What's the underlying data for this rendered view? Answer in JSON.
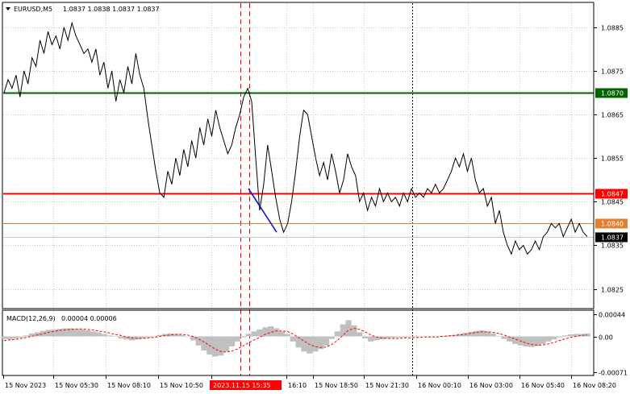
{
  "header": {
    "symbol_label": "EURUSD,M5",
    "ohlc": "1.0837 1.0838 1.0837 1.0837",
    "macd_label": "MACD(12,26,9)",
    "macd_values": "0.00004 0.00006"
  },
  "chart_data": {
    "type": "line",
    "title": "EURUSD,M5",
    "price_axis": {
      "ticks": [
        "1.0885",
        "1.0875",
        "1.0865",
        "1.0855",
        "1.0845",
        "1.0835",
        "1.0825"
      ],
      "ylim": [
        1.08205,
        1.08905
      ]
    },
    "time_axis": {
      "labels": [
        "15 Nov 2023",
        "15 Nov 05:30",
        "15 Nov 08:10",
        "15 Nov 10:50",
        "2023.11.15 15:35",
        "16:10",
        "15 Nov 18:50",
        "15 Nov 21:30",
        "16 Nov 00:10",
        "16 Nov 03:00",
        "16 Nov 05:40",
        "16 Nov 08:20"
      ],
      "highlighted_label": "2023.11.15 15:35"
    },
    "levels": [
      {
        "price": "1.0870",
        "color": "#006400"
      },
      {
        "price": "1.0847",
        "color": "#ff0000"
      },
      {
        "price": "1.0840",
        "color": "#e08030"
      },
      {
        "price": "1.0837",
        "color": "#000000"
      }
    ],
    "series": [
      {
        "values": [
          1.087,
          1.0873,
          1.0871,
          1.0874,
          1.0869,
          1.0875,
          1.0872,
          1.0878,
          1.0876,
          1.0882,
          1.0879,
          1.0884,
          1.0881,
          1.0883,
          1.088,
          1.0885,
          1.0882,
          1.0886,
          1.0883,
          1.0881,
          1.0879,
          1.088,
          1.0877,
          1.088,
          1.0874,
          1.0877,
          1.0871,
          1.0875,
          1.0868,
          1.0873,
          1.087,
          1.0876,
          1.0872,
          1.0879,
          1.0874,
          1.0871,
          1.0864,
          1.0858,
          1.0852,
          1.0847,
          1.0846,
          1.0852,
          1.0849,
          1.0855,
          1.0851,
          1.0857,
          1.0853,
          1.0859,
          1.0855,
          1.0862,
          1.0858,
          1.0864,
          1.086,
          1.0866,
          1.0862,
          1.0859,
          1.0856,
          1.0858,
          1.0862,
          1.0865,
          1.0869,
          1.0871,
          1.0868,
          1.0855,
          1.0843,
          1.0849,
          1.0858,
          1.0852,
          1.0846,
          1.0841,
          1.0838,
          1.084,
          1.0845,
          1.0852,
          1.086,
          1.0866,
          1.0865,
          1.086,
          1.0855,
          1.0851,
          1.0854,
          1.085,
          1.0856,
          1.0852,
          1.0847,
          1.085,
          1.0856,
          1.0853,
          1.0851,
          1.0845,
          1.0847,
          1.0843,
          1.0846,
          1.0844,
          1.0848,
          1.0845,
          1.0847,
          1.0845,
          1.0846,
          1.0844,
          1.0847,
          1.0845,
          1.0848,
          1.0846,
          1.0847,
          1.0846,
          1.0848,
          1.0847,
          1.0849,
          1.0847,
          1.0848,
          1.085,
          1.0852,
          1.0855,
          1.0853,
          1.0856,
          1.0852,
          1.0855,
          1.085,
          1.0847,
          1.0848,
          1.0844,
          1.0846,
          1.084,
          1.0843,
          1.0838,
          1.0835,
          1.0833,
          1.0836,
          1.0834,
          1.0835,
          1.0833,
          1.0834,
          1.0836,
          1.0834,
          1.0837,
          1.0838,
          1.084,
          1.0839,
          1.084,
          1.0837,
          1.0839,
          1.0841,
          1.0838,
          1.084,
          1.0838,
          1.0837
        ]
      }
    ],
    "macd": {
      "ticks": [
        "0.00044",
        "0.00",
        "-0.00071"
      ],
      "ylim": [
        -0.00071,
        0.00044
      ],
      "histogram": [
        -5e-05,
        -6e-05,
        -4e-05,
        -2e-05,
        2e-05,
        6e-05,
        8e-05,
        0.00011,
        0.00013,
        0.00014,
        0.00015,
        0.00016,
        0.00016,
        0.00015,
        0.00014,
        0.00012,
        0.0001,
        8e-05,
        5e-05,
        2e-05,
        -1e-05,
        -4e-05,
        -6e-05,
        -8e-05,
        -6e-05,
        -4e-05,
        -2e-05,
        1e-05,
        3e-05,
        5e-05,
        6e-05,
        5e-05,
        3e-05,
        0.0,
        -8e-05,
        -0.00018,
        -0.00028,
        -0.00036,
        -0.0004,
        -0.00038,
        -0.0003,
        -0.0002,
        -0.0001,
        -2e-05,
        5e-05,
        0.0001,
        0.00014,
        0.00018,
        0.0002,
        0.00016,
        0.0001,
        5e-05,
        -0.0001,
        -0.00022,
        -0.0003,
        -0.00034,
        -0.0003,
        -0.00025,
        -0.00018,
        -5e-05,
        0.0001,
        0.00024,
        0.00032,
        0.00022,
        8e-05,
        -4e-05,
        -0.0001,
        -8e-05,
        -6e-05,
        -4e-05,
        -3e-05,
        -2e-05,
        -2e-05,
        -1e-05,
        -1e-05,
        0.0,
        0.0,
        -1e-05,
        0.0,
        1e-05,
        2e-05,
        3e-05,
        5e-05,
        7e-05,
        9e-05,
        0.00011,
        0.00012,
        0.0001,
        6e-05,
        1e-05,
        -5e-05,
        -0.0001,
        -0.00015,
        -0.00018,
        -0.0002,
        -0.00021,
        -0.00019,
        -0.00015,
        -0.0001,
        -6e-05,
        -2e-05,
        2e-05,
        4e-05,
        5e-05,
        5e-05,
        6e-05
      ],
      "signal": [
        -8e-05,
        -7e-05,
        -6e-05,
        -4e-05,
        -2e-05,
        0.0,
        3e-05,
        5e-05,
        8e-05,
        0.0001,
        0.00012,
        0.00013,
        0.00014,
        0.00015,
        0.00015,
        0.00014,
        0.00013,
        0.00011,
        9e-05,
        7e-05,
        4e-05,
        2e-05,
        -1e-05,
        -3e-05,
        -4e-05,
        -4e-05,
        -3e-05,
        -2e-05,
        0.0,
        2e-05,
        3e-05,
        4e-05,
        4e-05,
        3e-05,
        0.0,
        -5e-05,
        -0.00011,
        -0.00018,
        -0.00025,
        -0.0003,
        -0.00031,
        -0.00029,
        -0.00025,
        -0.00019,
        -0.00013,
        -7e-05,
        -2e-05,
        4e-05,
        8e-05,
        0.00011,
        0.00011,
        0.0001,
        5e-05,
        -2e-05,
        -9e-05,
        -0.00016,
        -0.0002,
        -0.00022,
        -0.00021,
        -0.00016,
        -8e-05,
        2e-05,
        0.00012,
        0.00016,
        0.00014,
        9e-05,
        3e-05,
        -1e-05,
        -3e-05,
        -4e-05,
        -4e-05,
        -4e-05,
        -3e-05,
        -3e-05,
        -2e-05,
        -2e-05,
        -1e-05,
        -1e-05,
        -1e-05,
        0.0,
        1e-05,
        2e-05,
        3e-05,
        4e-05,
        6e-05,
        8e-05,
        9e-05,
        9e-05,
        8e-05,
        6e-05,
        3e-05,
        -1e-05,
        -5e-05,
        -9e-05,
        -0.00013,
        -0.00016,
        -0.00017,
        -0.00017,
        -0.00015,
        -0.00012,
        -8e-05,
        -5e-05,
        -2e-05,
        0.0,
        2e-05,
        3e-05
      ]
    }
  },
  "colors": {
    "background": "#ffffff",
    "price_line": "#000000",
    "grid": "#c8c8c8",
    "vline_red": "#ff0000",
    "vline_black": "#000000",
    "trend_line": "#1010d0",
    "macd_hist": "#c0c0c0",
    "macd_signal": "#ff0000",
    "time_highlight_bg": "#ff0000",
    "time_highlight_fg": "#ffffff"
  }
}
